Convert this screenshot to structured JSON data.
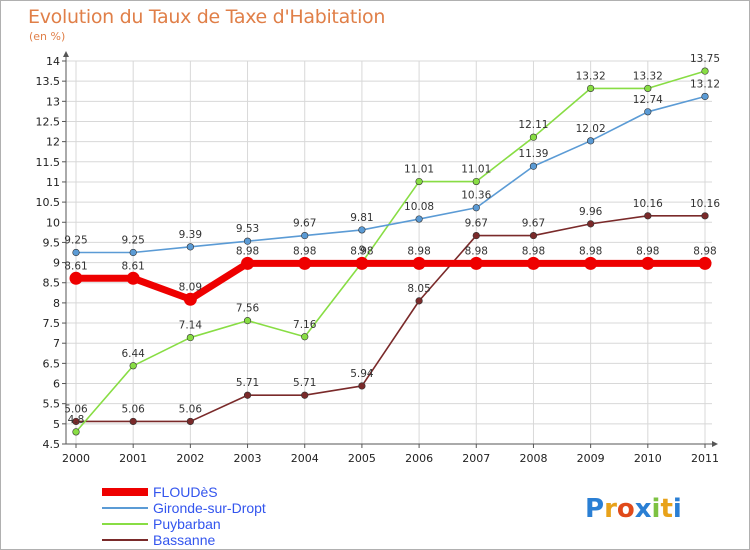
{
  "chart_data": {
    "type": "line",
    "title": "Evolution du Taux de Taxe d'Habitation",
    "subtitle": "(en %)",
    "x": [
      "2000",
      "2001",
      "2002",
      "2003",
      "2004",
      "2005",
      "2006",
      "2007",
      "2008",
      "2009",
      "2010",
      "2011"
    ],
    "ylim": [
      4.5,
      14
    ],
    "yticks": [
      "4.5",
      "5",
      "5.5",
      "6",
      "6.5",
      "7",
      "7.5",
      "8",
      "8.5",
      "9",
      "9.5",
      "10",
      "10.5",
      "11",
      "11.5",
      "12",
      "12.5",
      "13",
      "13.5",
      "14"
    ],
    "legend_position": "bottom-left",
    "series": [
      {
        "name": "FLOUDèS",
        "color": "#ee0000",
        "values": [
          8.61,
          8.61,
          8.09,
          8.98,
          8.98,
          8.98,
          8.98,
          8.98,
          8.98,
          8.98,
          8.98,
          8.98
        ],
        "labels": [
          "8.61",
          "8.61",
          "8.09",
          "8.98",
          "8.98",
          "8.98",
          "8.98",
          "8.98",
          "8.98",
          "8.98",
          "8.98",
          "8.98"
        ]
      },
      {
        "name": "Gironde-sur-Dropt",
        "color": "#5b9bd5",
        "values": [
          9.25,
          9.25,
          9.39,
          9.53,
          9.67,
          9.81,
          10.08,
          10.36,
          11.39,
          12.02,
          12.74,
          13.12
        ],
        "labels": [
          "9.25",
          "9.25",
          "9.39",
          "9.53",
          "9.67",
          "9.81",
          "10.08",
          "10.36",
          "11.39",
          "12.02",
          "12.74",
          "13.12"
        ]
      },
      {
        "name": "Puybarban",
        "color": "#88dd44",
        "values": [
          4.8,
          6.44,
          7.14,
          7.56,
          7.16,
          9,
          11.01,
          11.01,
          12.11,
          13.32,
          13.32,
          13.75
        ],
        "labels": [
          "4.8",
          "6.44",
          "7.14",
          "7.56",
          "7.16",
          "9",
          "11.01",
          "11.01",
          "12.11",
          "13.32",
          "13.32",
          "13.75"
        ]
      },
      {
        "name": "Bassanne",
        "color": "#7a2a2a",
        "values": [
          5.06,
          5.06,
          5.06,
          5.71,
          5.71,
          5.94,
          8.05,
          9.67,
          9.67,
          9.96,
          10.16,
          10.16
        ],
        "labels": [
          "5.06",
          "5.06",
          "5.06",
          "5.71",
          "5.71",
          "5.94",
          "8.05",
          "9.67",
          "9.67",
          "9.96",
          "10.16",
          "10.16"
        ]
      }
    ]
  },
  "logo": {
    "text": "Proxiti"
  }
}
